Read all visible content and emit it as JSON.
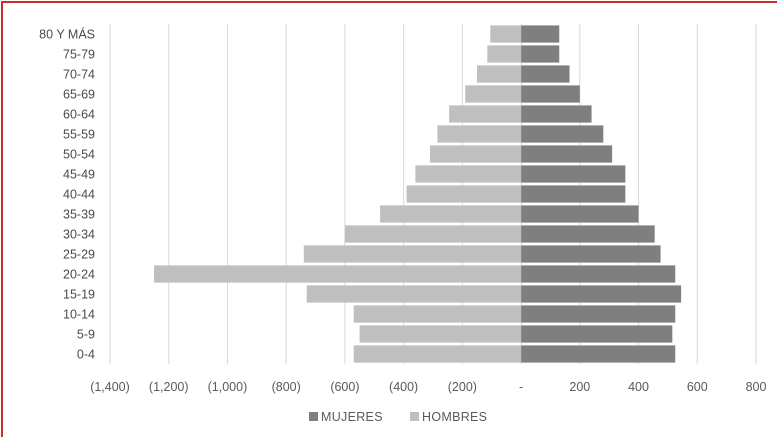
{
  "chart_data": {
    "type": "bar",
    "orientation": "horizontal",
    "categories": [
      "0-4",
      "5-9",
      "10-14",
      "15-19",
      "20-24",
      "25-29",
      "30-34",
      "35-39",
      "40-44",
      "45-49",
      "50-54",
      "55-59",
      "60-64",
      "65-69",
      "70-74",
      "75-79",
      "80 Y MÁS"
    ],
    "series": [
      {
        "name": "MUJERES",
        "color": "#7f7f7f",
        "values": [
          525,
          515,
          525,
          545,
          525,
          475,
          455,
          400,
          355,
          355,
          310,
          280,
          240,
          200,
          165,
          130,
          130
        ]
      },
      {
        "name": "HOMBRES",
        "color": "#bfbfbf",
        "values": [
          -570,
          -550,
          -570,
          -730,
          -1250,
          -740,
          -600,
          -480,
          -390,
          -360,
          -310,
          -285,
          -245,
          -190,
          -150,
          -115,
          -105
        ]
      }
    ],
    "xlim": [
      -1400,
      800
    ],
    "xticks": [
      -1400,
      -1200,
      -1000,
      -800,
      -600,
      -400,
      -200,
      0,
      200,
      400,
      600,
      800
    ],
    "xtick_labels": [
      "(1,400)",
      "(1,200)",
      "(1,000)",
      "(800)",
      "(600)",
      "(400)",
      "(200)",
      "-",
      "200",
      "400",
      "600",
      "800"
    ],
    "grid": true,
    "legend_position": "bottom"
  }
}
